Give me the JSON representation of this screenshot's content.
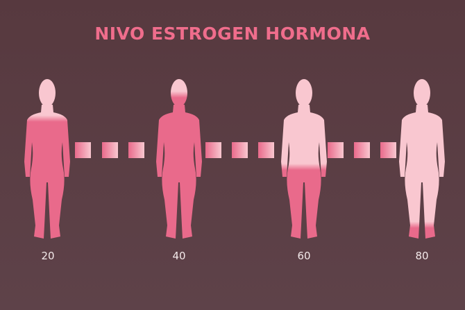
{
  "title": "NIVO ESTROGEN HORMONA",
  "colors": {
    "background": "#5a3d44",
    "title": "#ef6d8c",
    "level_fill": "#e96a8b",
    "empty_fill": "#f9c7d0"
  },
  "figures": [
    {
      "label": "20",
      "fill_level": 0.75
    },
    {
      "label": "40",
      "fill_level": 0.9
    },
    {
      "label": "60",
      "fill_level": 0.45
    },
    {
      "label": "80",
      "fill_level": 0.09
    }
  ]
}
